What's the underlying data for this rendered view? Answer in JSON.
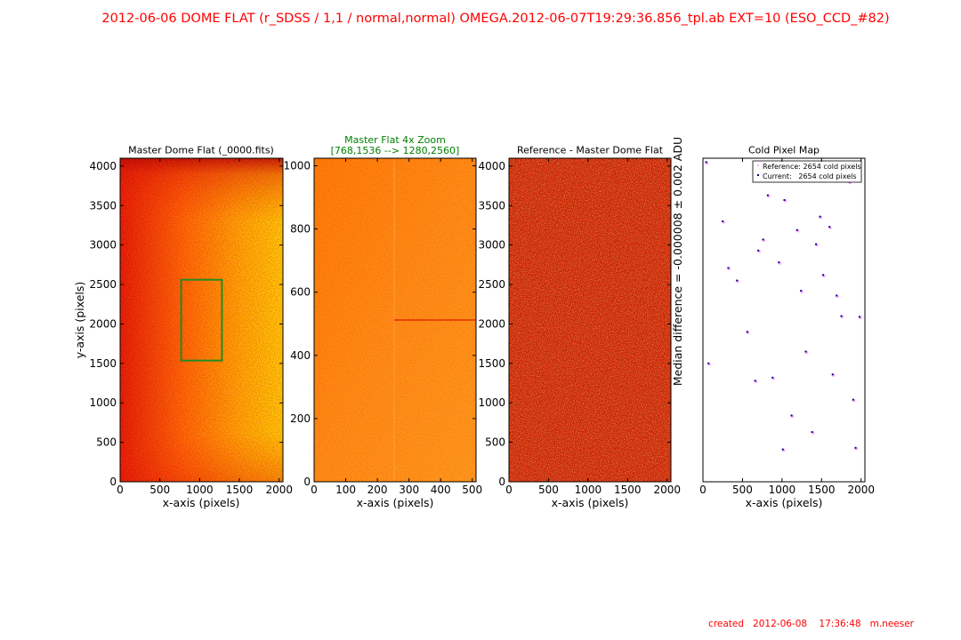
{
  "header": {
    "title": "2012-06-06   DOME FLAT   (r_SDSS / 1,1 / normal,normal)     OMEGA.2012-06-07T19:29:36.856_tpl.ab   EXT=10 (ESO_CCD_#82)"
  },
  "footer": {
    "created": "created   2012-06-08    17:36:48   m.neeser"
  },
  "colors": {
    "title": "#ff0000",
    "zoom_title": "#008000",
    "zoom_box": "#228b22",
    "reference_marker": "#ffaaff",
    "current_marker": "#00008b"
  },
  "chart_data": [
    {
      "type": "heatmap",
      "title": "Master Dome Flat (_0000.fits)",
      "xlabel": "x-axis (pixels)",
      "ylabel": "y-axis (pixels)",
      "xlim": [
        0,
        2048
      ],
      "ylim": [
        0,
        4100
      ],
      "xticks": [
        0,
        500,
        1000,
        1500,
        2000
      ],
      "yticks": [
        0,
        500,
        1000,
        1500,
        2000,
        2500,
        3000,
        3500,
        4000
      ],
      "colormap": "hot",
      "zoom_box": {
        "x": [
          768,
          1280
        ],
        "y": [
          1536,
          2560
        ]
      }
    },
    {
      "type": "heatmap",
      "title": "Master Flat 4x Zoom",
      "subtitle": "[768,1536 --> 1280,2560]",
      "xlabel": "x-axis (pixels)",
      "xlim": [
        0,
        512
      ],
      "ylim": [
        0,
        1024
      ],
      "xticks": [
        0,
        100,
        200,
        300,
        400,
        500
      ],
      "yticks": [
        0,
        200,
        400,
        600,
        800,
        1000
      ],
      "colormap": "hot"
    },
    {
      "type": "heatmap",
      "title": "Reference - Master Dome Flat",
      "xlabel": "x-axis (pixels)",
      "xlim": [
        0,
        2048
      ],
      "ylim": [
        0,
        4100
      ],
      "xticks": [
        0,
        500,
        1000,
        1500,
        2000
      ],
      "yticks": [
        0,
        500,
        1000,
        1500,
        2000,
        2500,
        3000,
        3500,
        4000
      ],
      "colormap": "hot",
      "side_label": "Median difference = -0.000008  ±  0.002 ADU"
    },
    {
      "type": "scatter",
      "title": "Cold Pixel Map",
      "xlabel": "x-axis (pixels)",
      "xlim": [
        0,
        2048
      ],
      "ylim": [
        0,
        4100
      ],
      "xticks": [
        0,
        500,
        1000,
        1500,
        2000
      ],
      "legend": [
        "Reference: 2654 cold pixels",
        "Current:   2654 cold pixels"
      ],
      "legend_position": "upper right",
      "series": [
        {
          "name": "Current",
          "x": [
            40,
            820,
            1030,
            1190,
            960,
            1480,
            1600,
            320,
            1750,
            700,
            1640,
            1980,
            1380,
            1240,
            430,
            70,
            880,
            1520,
            1300,
            760,
            250,
            1120,
            1900,
            560,
            1850,
            1430,
            1930,
            660,
            1010,
            1690
          ],
          "y": [
            4050,
            3630,
            3570,
            3190,
            2780,
            3360,
            3230,
            2710,
            2100,
            2930,
            1360,
            2090,
            630,
            2420,
            2550,
            1500,
            1320,
            2620,
            1650,
            3070,
            3300,
            840,
            1040,
            1900,
            3800,
            3010,
            430,
            1280,
            410,
            2360
          ]
        },
        {
          "name": "Reference",
          "x": [
            40,
            820,
            1030,
            1190,
            960,
            1480,
            1600,
            320,
            1750,
            700,
            1640,
            1980,
            1380,
            1240,
            430,
            70,
            880,
            1520,
            1300,
            760,
            250,
            1120,
            1900,
            560,
            1850,
            1430,
            1930,
            660,
            1010,
            1690
          ],
          "y": [
            4050,
            3630,
            3570,
            3190,
            2780,
            3360,
            3230,
            2710,
            2100,
            2930,
            1360,
            2090,
            630,
            2420,
            2550,
            1500,
            1320,
            2620,
            1650,
            3070,
            3300,
            840,
            1040,
            1900,
            3800,
            3010,
            430,
            1280,
            410,
            2360
          ]
        }
      ]
    }
  ]
}
